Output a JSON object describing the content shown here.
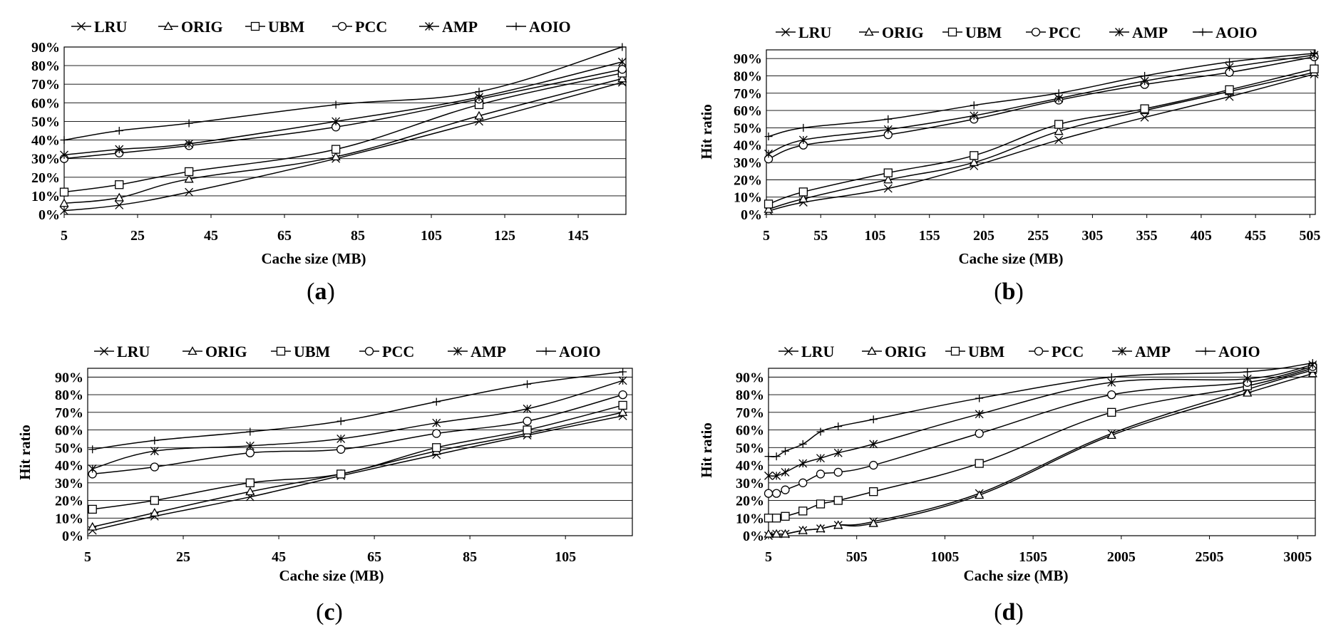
{
  "chart_data": [
    {
      "type": "line",
      "panel_label": "a",
      "title": "",
      "xlabel": "Cache size (MB)",
      "ylabel": "",
      "xlim": [
        5,
        158
      ],
      "ylim": [
        0,
        90
      ],
      "xticks": [
        5,
        25,
        45,
        65,
        85,
        105,
        125,
        145
      ],
      "yticks": [
        0,
        10,
        20,
        30,
        40,
        50,
        60,
        70,
        80,
        90
      ],
      "ytick_suffix": "%",
      "legend": [
        "LRU",
        "ORIG",
        "UBM",
        "PCC",
        "AMP",
        "AOIO"
      ],
      "x": [
        5,
        20,
        39,
        79,
        118,
        157
      ],
      "series": [
        {
          "name": "LRU",
          "marker": "x",
          "values": [
            2,
            5,
            12,
            30,
            50,
            71
          ]
        },
        {
          "name": "ORIG",
          "marker": "triangle",
          "values": [
            6,
            9,
            19,
            31,
            53,
            73
          ]
        },
        {
          "name": "UBM",
          "marker": "square",
          "values": [
            12,
            16,
            23,
            35,
            59,
            76
          ]
        },
        {
          "name": "PCC",
          "marker": "circle",
          "values": [
            30,
            33,
            37,
            47,
            62,
            78
          ]
        },
        {
          "name": "AMP",
          "marker": "star",
          "values": [
            32,
            35,
            38,
            50,
            63,
            82
          ]
        },
        {
          "name": "AOIO",
          "marker": "plus",
          "values": [
            40,
            45,
            49,
            59,
            66,
            90
          ]
        }
      ]
    },
    {
      "type": "line",
      "panel_label": "b",
      "title": "",
      "xlabel": "Cache size (MB)",
      "ylabel": "Hit ratio",
      "xlim": [
        5,
        510
      ],
      "ylim": [
        0,
        95
      ],
      "xticks": [
        5,
        55,
        105,
        155,
        205,
        255,
        305,
        355,
        405,
        455,
        505
      ],
      "yticks": [
        0,
        10,
        20,
        30,
        40,
        50,
        60,
        70,
        80,
        90
      ],
      "ytick_suffix": "%",
      "legend": [
        "LRU",
        "ORIG",
        "UBM",
        "PCC",
        "AMP",
        "AOIO"
      ],
      "x": [
        7,
        39,
        117,
        196,
        274,
        353,
        431,
        509
      ],
      "series": [
        {
          "name": "LRU",
          "marker": "x",
          "values": [
            2,
            7,
            15,
            28,
            43,
            56,
            68,
            81
          ]
        },
        {
          "name": "ORIG",
          "marker": "triangle",
          "values": [
            3,
            9,
            20,
            30,
            48,
            60,
            71,
            82
          ]
        },
        {
          "name": "UBM",
          "marker": "square",
          "values": [
            6,
            13,
            24,
            34,
            52,
            61,
            72,
            84
          ]
        },
        {
          "name": "PCC",
          "marker": "circle",
          "values": [
            32,
            40,
            46,
            55,
            66,
            75,
            82,
            91
          ]
        },
        {
          "name": "AMP",
          "marker": "star",
          "values": [
            35,
            43,
            49,
            57,
            67,
            77,
            85,
            92
          ]
        },
        {
          "name": "AOIO",
          "marker": "plus",
          "values": [
            45,
            50,
            55,
            63,
            70,
            80,
            88,
            93
          ]
        }
      ]
    },
    {
      "type": "line",
      "panel_label": "c",
      "title": "",
      "xlabel": "Cache size (MB)",
      "ylabel": "Hit ratio",
      "xlim": [
        5,
        119
      ],
      "ylim": [
        0,
        95
      ],
      "xticks": [
        5,
        25,
        45,
        65,
        85,
        105
      ],
      "yticks": [
        0,
        10,
        20,
        30,
        40,
        50,
        60,
        70,
        80,
        90
      ],
      "ytick_suffix": "%",
      "legend": [
        "LRU",
        "ORIG",
        "UBM",
        "PCC",
        "AMP",
        "AOIO"
      ],
      "x": [
        6,
        19,
        39,
        58,
        78,
        97,
        117
      ],
      "series": [
        {
          "name": "LRU",
          "marker": "x",
          "values": [
            3,
            11,
            22,
            34,
            46,
            57,
            68
          ]
        },
        {
          "name": "ORIG",
          "marker": "triangle",
          "values": [
            5,
            13,
            25,
            35,
            48,
            58,
            70
          ]
        },
        {
          "name": "UBM",
          "marker": "square",
          "values": [
            15,
            20,
            30,
            35,
            50,
            60,
            74
          ]
        },
        {
          "name": "PCC",
          "marker": "circle",
          "values": [
            35,
            39,
            47,
            49,
            58,
            65,
            80
          ]
        },
        {
          "name": "AMP",
          "marker": "star",
          "values": [
            38,
            48,
            51,
            55,
            64,
            72,
            88
          ]
        },
        {
          "name": "AOIO",
          "marker": "plus",
          "values": [
            49,
            54,
            59,
            65,
            76,
            86,
            93
          ]
        }
      ]
    },
    {
      "type": "line",
      "panel_label": "d",
      "title": "",
      "xlabel": "Cache size (MB)",
      "ylabel": "Hit ratio",
      "xlim": [
        5,
        3105
      ],
      "ylim": [
        0,
        95
      ],
      "xticks": [
        5,
        505,
        1005,
        1505,
        2005,
        2505,
        3005
      ],
      "yticks": [
        0,
        10,
        20,
        30,
        40,
        50,
        60,
        70,
        80,
        90
      ],
      "ytick_suffix": "%",
      "legend": [
        "LRU",
        "ORIG",
        "UBM",
        "PCC",
        "AMP",
        "AOIO"
      ],
      "x": [
        5,
        50,
        100,
        200,
        300,
        400,
        600,
        1200,
        1950,
        2720,
        3090
      ],
      "series": [
        {
          "name": "LRU",
          "marker": "x",
          "values": [
            0,
            1,
            1,
            3,
            4,
            6,
            8,
            24,
            58,
            83,
            94
          ]
        },
        {
          "name": "ORIG",
          "marker": "triangle",
          "values": [
            1,
            1,
            1,
            3,
            4,
            6,
            7,
            23,
            57,
            81,
            92
          ]
        },
        {
          "name": "UBM",
          "marker": "square",
          "values": [
            10,
            10,
            11,
            14,
            18,
            20,
            25,
            41,
            70,
            85,
            95
          ]
        },
        {
          "name": "PCC",
          "marker": "circle",
          "values": [
            24,
            24,
            26,
            30,
            35,
            36,
            40,
            58,
            80,
            87,
            96
          ]
        },
        {
          "name": "AMP",
          "marker": "star",
          "values": [
            34,
            34,
            36,
            41,
            44,
            47,
            52,
            69,
            87,
            89,
            97
          ]
        },
        {
          "name": "AOIO",
          "marker": "plus",
          "values": [
            45,
            45,
            48,
            52,
            59,
            62,
            66,
            78,
            90,
            93,
            98
          ]
        }
      ]
    }
  ]
}
